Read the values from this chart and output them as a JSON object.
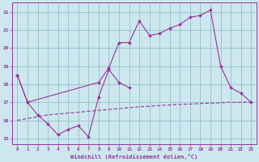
{
  "xlabel": "Windchill (Refroidissement éolien,°C)",
  "xlim": [
    -0.5,
    23.5
  ],
  "ylim": [
    14.7,
    22.5
  ],
  "yticks": [
    15,
    16,
    17,
    18,
    19,
    20,
    21,
    22
  ],
  "xticks": [
    0,
    1,
    2,
    3,
    4,
    5,
    6,
    7,
    8,
    9,
    10,
    11,
    12,
    13,
    14,
    15,
    16,
    17,
    18,
    19,
    20,
    21,
    22,
    23
  ],
  "bg_color": "#cce8ee",
  "line_color": "#993399",
  "grid_color": "#99bbcc",
  "series_bottom_x": [
    0,
    1,
    2,
    3,
    4,
    5,
    6,
    7,
    8,
    9,
    10,
    11
  ],
  "series_bottom_y": [
    18.5,
    17.0,
    16.3,
    15.8,
    15.2,
    15.5,
    15.7,
    15.1,
    17.3,
    18.8,
    18.1,
    17.8
  ],
  "series_top_x": [
    0,
    1,
    8,
    9,
    10,
    11,
    12,
    13,
    14,
    15,
    16,
    17,
    18,
    19,
    20,
    21,
    22,
    23
  ],
  "series_top_y": [
    18.5,
    17.0,
    18.1,
    18.9,
    20.3,
    20.3,
    21.5,
    20.7,
    20.8,
    21.1,
    21.3,
    21.7,
    21.8,
    22.1,
    19.0,
    17.8,
    17.5,
    17.0
  ],
  "series_dash_x": [
    0,
    1,
    2,
    3,
    4,
    5,
    6,
    7,
    8,
    9,
    10,
    11,
    12,
    13,
    14,
    15,
    16,
    17,
    18,
    19,
    20,
    21,
    22,
    23
  ],
  "series_dash_y": [
    16.0,
    16.1,
    16.2,
    16.3,
    16.35,
    16.4,
    16.45,
    16.5,
    16.55,
    16.6,
    16.65,
    16.7,
    16.75,
    16.78,
    16.82,
    16.85,
    16.88,
    16.9,
    16.93,
    16.95,
    16.97,
    17.0,
    17.0,
    17.0
  ]
}
